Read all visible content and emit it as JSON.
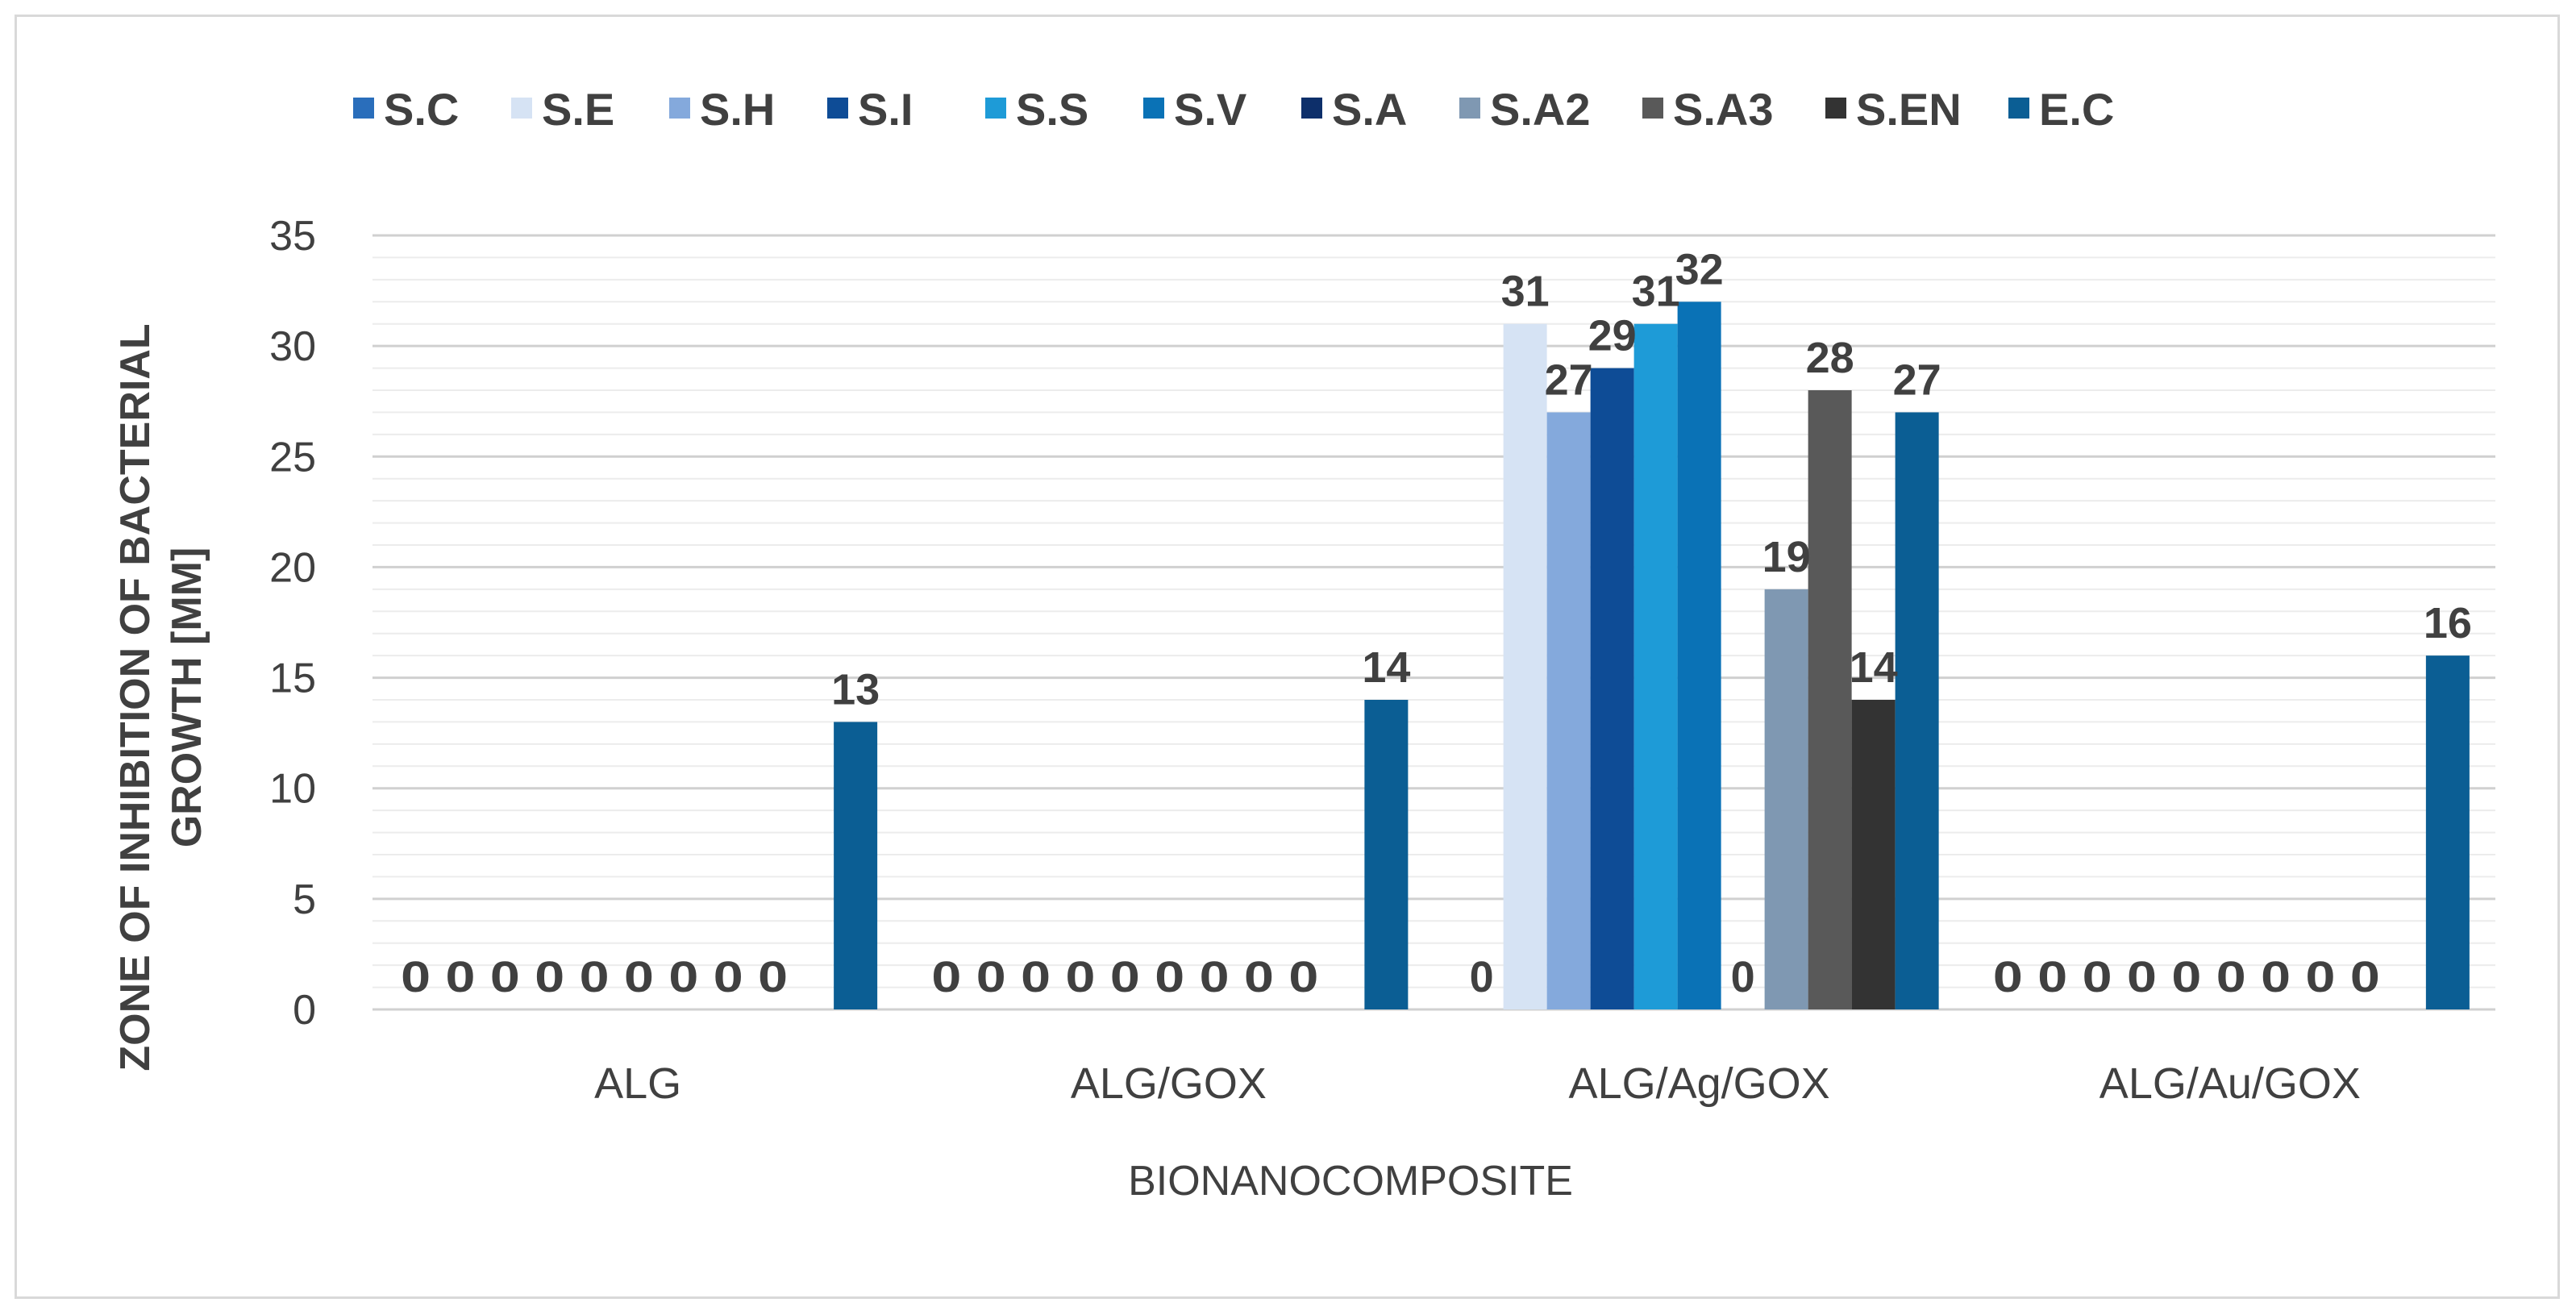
{
  "chart_data": {
    "type": "bar",
    "title": "",
    "xlabel": "BIONANOCOMPOSITE",
    "ylabel_lines": [
      "ZONE OF INHIBITION OF BACTERIAL",
      "GROWTH [MM]"
    ],
    "ylim": [
      0,
      35
    ],
    "yticks": [
      0,
      5,
      10,
      15,
      20,
      25,
      30,
      35
    ],
    "gridlines": true,
    "legend_position": "top",
    "categories": [
      "ALG",
      "ALG/GOX",
      "ALG/Ag/GOX",
      "ALG/Au/GOX"
    ],
    "series": [
      {
        "name": "S.C",
        "color": "#2a6ebb",
        "values": [
          0,
          0,
          0,
          0
        ]
      },
      {
        "name": "S.E",
        "color": "#d6e3f4",
        "values": [
          0,
          0,
          31,
          0
        ]
      },
      {
        "name": "S.H",
        "color": "#84a9dc",
        "values": [
          0,
          0,
          27,
          0
        ]
      },
      {
        "name": "S.I",
        "color": "#0e4c96",
        "values": [
          0,
          0,
          29,
          0
        ]
      },
      {
        "name": "S.S",
        "color": "#1e9bd7",
        "values": [
          0,
          0,
          31,
          0
        ]
      },
      {
        "name": "S.V",
        "color": "#0a72b6",
        "values": [
          0,
          0,
          32,
          0
        ]
      },
      {
        "name": "S.A",
        "color": "#0d2f6a",
        "values": [
          0,
          0,
          0,
          0
        ]
      },
      {
        "name": "S.A2",
        "color": "#7f98b2",
        "values": [
          0,
          0,
          19,
          0
        ]
      },
      {
        "name": "S.A3",
        "color": "#595959",
        "values": [
          0,
          0,
          28,
          0
        ]
      },
      {
        "name": "S.EN",
        "color": "#333333",
        "values": [
          0,
          0,
          14,
          0
        ]
      },
      {
        "name": "E.C",
        "color": "#0b5e94",
        "values": [
          13,
          14,
          27,
          16
        ]
      }
    ],
    "data_labels": [
      [
        "0",
        "",
        "",
        "",
        "",
        "",
        "",
        "",
        "",
        "",
        "13"
      ],
      [
        "0",
        "",
        "",
        "",
        "",
        "",
        "",
        "",
        "",
        "",
        "14"
      ],
      [
        "0",
        "31",
        "27",
        "29",
        "31",
        "32",
        "0",
        "19",
        "28",
        "14",
        "27"
      ],
      [
        "0",
        "",
        "",
        "",
        "",
        "",
        "",
        "",
        "",
        "",
        "16"
      ]
    ],
    "zero_label_runs": [
      "0 0 0 0 0 0 0 0 0",
      "0 0 0 0 0 0 0 0 0",
      "",
      "0 0 0 0 0 0 0 0 0"
    ]
  }
}
